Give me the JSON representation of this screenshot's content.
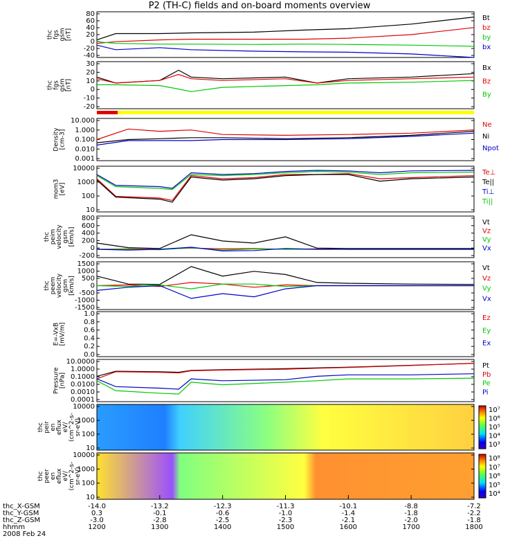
{
  "title": "P2 (TH-C) fields and on-board moments overview",
  "footer": {
    "row_labels": [
      "thc_X-GSM",
      "thc_Y-GSM",
      "thc_Z-GSM",
      "hhmm",
      "2008 Feb 24"
    ],
    "rows": [
      [
        "-14.0",
        "-13.2",
        "-12.3",
        "-11.3",
        "-10.1",
        "-8.8",
        "-7.2"
      ],
      [
        "0.3",
        "-0.1",
        "-0.6",
        "-1.0",
        "-1.4",
        "-1.8",
        "-2.2"
      ],
      [
        "-3.0",
        "-2.8",
        "-2.5",
        "-2.3",
        "-2.1",
        "-2.0",
        "-1.8"
      ],
      [
        "1200",
        "1300",
        "1400",
        "1500",
        "1600",
        "1700",
        "1800"
      ]
    ]
  },
  "colors": {
    "black": "#000000",
    "red": "#e00000",
    "green": "#00c800",
    "blue": "#0000c8",
    "yellow": "#ffff00"
  },
  "chart_data": [
    {
      "type": "line",
      "ylabel": [
        "thc",
        "fgs",
        "gsm",
        "[nT]"
      ],
      "scale": "linear",
      "ylim": [
        -40,
        90
      ],
      "yticks": [
        "80",
        "60",
        "40",
        "20",
        "0",
        "-20",
        "-40"
      ],
      "legend": [
        {
          "name": "Bt",
          "color": "#000000"
        },
        {
          "name": "bz",
          "color": "#e00000"
        },
        {
          "name": "by",
          "color": "#00c800"
        },
        {
          "name": "bx",
          "color": "#0000c8"
        }
      ],
      "x": [
        12.0,
        12.3,
        13.0,
        13.5,
        14.5,
        15.3,
        16.0,
        17.0,
        18.0
      ],
      "series": [
        {
          "name": "Bt",
          "color": "#000000",
          "values": [
            10,
            28,
            28,
            30,
            32,
            38,
            42,
            55,
            75
          ]
        },
        {
          "name": "bz",
          "color": "#e00000",
          "values": [
            0,
            5,
            10,
            12,
            12,
            12,
            15,
            25,
            45
          ]
        },
        {
          "name": "by",
          "color": "#00c800",
          "values": [
            5,
            0,
            -2,
            -2,
            -3,
            -2,
            -3,
            -5,
            -8
          ]
        },
        {
          "name": "bx",
          "color": "#0000c8",
          "values": [
            -5,
            -18,
            -12,
            -18,
            -22,
            -24,
            -25,
            -30,
            -40
          ]
        }
      ]
    },
    {
      "type": "line",
      "ylabel": [
        "thc",
        "fgs",
        "gsm",
        "[nT]"
      ],
      "scale": "linear",
      "ylim": [
        -25,
        30
      ],
      "yticks": [
        "30",
        "20",
        "10",
        "0",
        "-10",
        "-20"
      ],
      "legend": [
        {
          "name": "Bx",
          "color": "#000000"
        },
        {
          "name": "Bz",
          "color": "#e00000"
        },
        {
          "name": "By",
          "color": "#00c800"
        }
      ],
      "x": [
        12.0,
        12.3,
        13.0,
        13.3,
        13.5,
        14.0,
        15.0,
        15.5,
        16.0,
        17.0,
        18.0
      ],
      "series": [
        {
          "name": "Bx",
          "color": "#000000",
          "values": [
            12,
            5,
            8,
            20,
            12,
            10,
            12,
            5,
            10,
            12,
            16
          ]
        },
        {
          "name": "Bz",
          "color": "#e00000",
          "values": [
            10,
            5,
            8,
            15,
            10,
            8,
            10,
            5,
            8,
            10,
            12
          ]
        },
        {
          "name": "By",
          "color": "#00c800",
          "values": [
            3,
            3,
            2,
            -2,
            -5,
            0,
            2,
            3,
            5,
            6,
            8
          ]
        }
      ]
    },
    {
      "type": "line",
      "ylabel": [
        "Density",
        "[cm-3]"
      ],
      "scale": "log",
      "ylim": [
        0.001,
        10
      ],
      "yticks": [
        "10.000",
        "1.000",
        "0.100",
        "0.010",
        "0.001"
      ],
      "legend": [
        {
          "name": "Ne",
          "color": "#e00000"
        },
        {
          "name": "Ni",
          "color": "#000000"
        },
        {
          "name": "Npot",
          "color": "#0000c8"
        }
      ],
      "x": [
        12.0,
        12.5,
        13.0,
        13.5,
        14.0,
        15.0,
        16.0,
        17.0,
        18.0
      ],
      "series": [
        {
          "name": "Ne",
          "color": "#e00000",
          "values": [
            0.1,
            1.0,
            0.6,
            0.8,
            0.3,
            0.25,
            0.3,
            0.4,
            0.8
          ]
        },
        {
          "name": "Ni",
          "color": "#000000",
          "values": [
            0.05,
            0.1,
            0.12,
            0.15,
            0.15,
            0.12,
            0.15,
            0.25,
            0.6
          ]
        },
        {
          "name": "Npot",
          "color": "#0000c8",
          "values": [
            0.03,
            0.08,
            0.08,
            0.08,
            0.1,
            0.1,
            0.12,
            0.2,
            0.4
          ]
        }
      ]
    },
    {
      "type": "line",
      "ylabel": [
        "mom3",
        "[eV]"
      ],
      "scale": "log",
      "ylim": [
        6,
        12000
      ],
      "yticks": [
        "10000",
        "1000",
        "100",
        "10"
      ],
      "legend": [
        {
          "name": "Te⊥",
          "color": "#e00000"
        },
        {
          "name": "Te||",
          "color": "#000000"
        },
        {
          "name": "Ti⊥",
          "color": "#0000c8"
        },
        {
          "name": "Ti||",
          "color": "#00c800"
        }
      ],
      "x": [
        12.0,
        12.3,
        13.0,
        13.2,
        13.5,
        14.0,
        14.5,
        15.0,
        15.5,
        16.0,
        16.5,
        17.0,
        18.0
      ],
      "series": [
        {
          "name": "Te⊥",
          "color": "#e00000",
          "values": [
            1500,
            80,
            60,
            40,
            2500,
            1500,
            1800,
            3000,
            3000,
            3500,
            1500,
            1800,
            2500
          ]
        },
        {
          "name": "Te||",
          "color": "#000000",
          "values": [
            1200,
            70,
            50,
            30,
            2000,
            1200,
            1500,
            2500,
            3000,
            3000,
            1000,
            1500,
            2000
          ]
        },
        {
          "name": "Ti⊥",
          "color": "#0000c8",
          "values": [
            3000,
            500,
            400,
            300,
            4000,
            3000,
            3500,
            5000,
            6000,
            5500,
            4000,
            5500,
            6000
          ]
        },
        {
          "name": "Ti||",
          "color": "#00c800",
          "values": [
            2500,
            400,
            300,
            250,
            3000,
            2500,
            3000,
            4000,
            5000,
            4500,
            3000,
            4000,
            4500
          ]
        }
      ]
    },
    {
      "type": "line",
      "ylabel": [
        "thc",
        "peim",
        "velocity",
        "gsm",
        "[km/s]"
      ],
      "scale": "linear",
      "ylim": [
        -200,
        800
      ],
      "yticks": [
        "800",
        "600",
        "400",
        "200",
        "0",
        "-200"
      ],
      "legend": [
        {
          "name": "Vt",
          "color": "#000000"
        },
        {
          "name": "Vz",
          "color": "#e00000"
        },
        {
          "name": "Vy",
          "color": "#00c800"
        },
        {
          "name": "Vx",
          "color": "#0000c8"
        }
      ],
      "x": [
        12.0,
        12.5,
        13.0,
        13.5,
        14.0,
        14.5,
        15.0,
        15.5,
        16.0,
        17.0,
        18.0
      ],
      "series": [
        {
          "name": "Vt",
          "color": "#000000",
          "values": [
            150,
            40,
            20,
            350,
            200,
            150,
            300,
            30,
            20,
            20,
            20
          ]
        },
        {
          "name": "Vz",
          "color": "#e00000",
          "values": [
            0,
            10,
            0,
            30,
            10,
            20,
            0,
            10,
            0,
            0,
            0
          ]
        },
        {
          "name": "Vy",
          "color": "#00c800",
          "values": [
            0,
            0,
            -10,
            40,
            -20,
            10,
            0,
            0,
            0,
            0,
            0
          ]
        },
        {
          "name": "Vx",
          "color": "#0000c8",
          "values": [
            0,
            -20,
            0,
            50,
            -40,
            -30,
            20,
            0,
            0,
            0,
            0
          ]
        }
      ]
    },
    {
      "type": "line",
      "ylabel": [
        "thc",
        "peem",
        "velocity",
        "gsm",
        "[km/s]"
      ],
      "scale": "linear",
      "ylim": [
        -1500,
        1500
      ],
      "yticks": [
        "1500",
        "1000",
        "500",
        "0",
        "-500",
        "-1000",
        "-1500"
      ],
      "legend": [
        {
          "name": "Vt",
          "color": "#000000"
        },
        {
          "name": "Vz",
          "color": "#e00000"
        },
        {
          "name": "Vy",
          "color": "#00c800"
        },
        {
          "name": "Vx",
          "color": "#0000c8"
        }
      ],
      "x": [
        12.0,
        12.5,
        13.0,
        13.5,
        14.0,
        14.5,
        15.0,
        15.5,
        16.0,
        17.0,
        18.0
      ],
      "series": [
        {
          "name": "Vt",
          "color": "#000000",
          "values": [
            600,
            100,
            80,
            1200,
            600,
            900,
            700,
            200,
            150,
            100,
            80
          ]
        },
        {
          "name": "Vz",
          "color": "#e00000",
          "values": [
            0,
            50,
            -50,
            200,
            100,
            -100,
            50,
            0,
            0,
            0,
            0
          ]
        },
        {
          "name": "Vy",
          "color": "#00c800",
          "values": [
            0,
            -50,
            50,
            -200,
            100,
            100,
            -50,
            0,
            0,
            0,
            0
          ]
        },
        {
          "name": "Vx",
          "color": "#0000c8",
          "values": [
            -300,
            -100,
            0,
            -800,
            -500,
            -700,
            -200,
            0,
            0,
            0,
            0
          ]
        }
      ]
    },
    {
      "type": "line",
      "ylabel": [
        "E=-VxB",
        "[mV/m]"
      ],
      "scale": "linear",
      "ylim": [
        0.0,
        1.0
      ],
      "yticks": [
        "1.0",
        "0.8",
        "0.6",
        "0.4",
        "0.2",
        "0.0"
      ],
      "legend": [
        {
          "name": "Ez",
          "color": "#e00000"
        },
        {
          "name": "Ey",
          "color": "#00c800"
        },
        {
          "name": "Ex",
          "color": "#0000c8"
        }
      ],
      "x": [],
      "series": []
    },
    {
      "type": "line",
      "ylabel": [
        "Pressure",
        "[nPa]"
      ],
      "scale": "log",
      "ylim": [
        0.0001,
        10
      ],
      "yticks": [
        "10.0000",
        "1.0000",
        "0.1000",
        "0.0100",
        "0.0010",
        "0.0001"
      ],
      "legend": [
        {
          "name": "Pt",
          "color": "#000000"
        },
        {
          "name": "Pb",
          "color": "#e00000"
        },
        {
          "name": "Pe",
          "color": "#00c800"
        },
        {
          "name": "Pi",
          "color": "#0000c8"
        }
      ],
      "x": [
        12.0,
        12.3,
        13.0,
        13.3,
        13.5,
        14.0,
        15.0,
        15.5,
        16.0,
        17.0,
        18.0
      ],
      "series": [
        {
          "name": "Pt",
          "color": "#000000",
          "values": [
            0.1,
            0.4,
            0.35,
            0.3,
            0.5,
            0.6,
            0.8,
            1.0,
            1.2,
            2.0,
            3.5
          ]
        },
        {
          "name": "Pb",
          "color": "#e00000",
          "values": [
            0.05,
            0.35,
            0.3,
            0.25,
            0.45,
            0.55,
            0.7,
            0.9,
            1.1,
            1.9,
            3.5
          ]
        },
        {
          "name": "Pe",
          "color": "#00c800",
          "values": [
            0.03,
            0.002,
            0.001,
            0.0008,
            0.02,
            0.01,
            0.02,
            0.03,
            0.05,
            0.05,
            0.06
          ]
        },
        {
          "name": "Pi",
          "color": "#0000c8",
          "values": [
            0.05,
            0.006,
            0.004,
            0.003,
            0.05,
            0.03,
            0.04,
            0.1,
            0.15,
            0.15,
            0.2
          ]
        }
      ]
    },
    {
      "type": "heatmap",
      "ylabel": [
        "thc",
        "peir",
        "en",
        "eflux",
        "eV/",
        "(cm^2-s-",
        "sr-eV)"
      ],
      "ylim": [
        10,
        20000
      ],
      "yticks": [
        "10000",
        "1000",
        "100",
        "10"
      ],
      "colorbar": {
        "ticks": [
          "10⁷",
          "10⁶",
          "10⁵",
          "10⁴",
          "10³"
        ]
      }
    },
    {
      "type": "heatmap",
      "ylabel": [
        "thc",
        "peer",
        "en",
        "eflux",
        "eV/",
        "(cm^2-s-",
        "sr-eV)"
      ],
      "ylim": [
        10,
        20000
      ],
      "yticks": [
        "10000",
        "1000",
        "100",
        "10"
      ],
      "colorbar": {
        "ticks": [
          "10⁸",
          "10⁷",
          "10⁶",
          "10⁵",
          "10⁴"
        ]
      }
    }
  ]
}
